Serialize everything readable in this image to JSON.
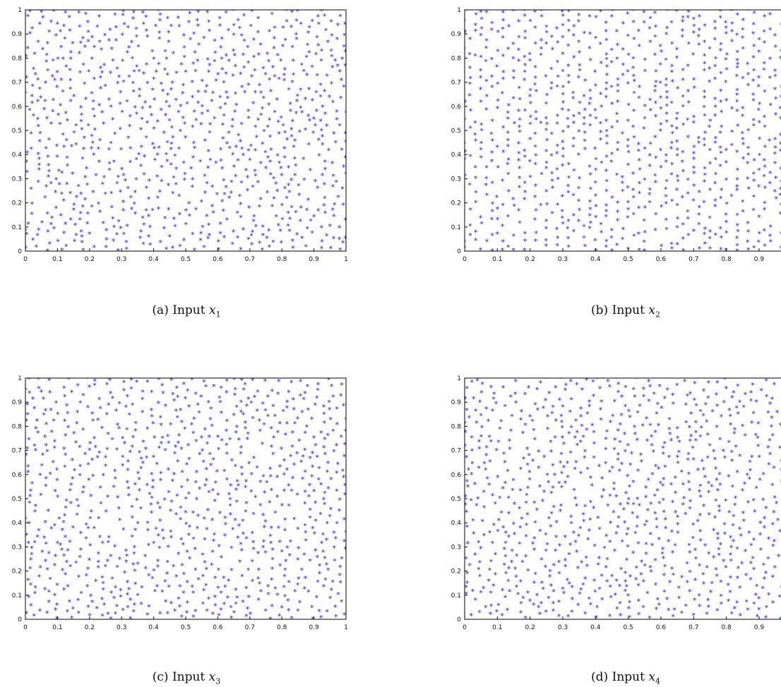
{
  "chart_data": [
    {
      "type": "scatter",
      "panel_label": "(a)",
      "caption_text": "Input",
      "variable": "x",
      "subscript": "1",
      "xlim": [
        0,
        1
      ],
      "ylim": [
        0,
        1
      ],
      "xticks": [
        "0",
        "0.1",
        "0.2",
        "0.3",
        "0.4",
        "0.5",
        "0.6",
        "0.7",
        "0.8",
        "0.9",
        "1"
      ],
      "yticks": [
        "0",
        "0.1",
        "0.2",
        "0.3",
        "0.4",
        "0.5",
        "0.6",
        "0.7",
        "0.8",
        "0.9",
        "1"
      ],
      "marker": "*",
      "marker_color": "#1414e6",
      "grid": false,
      "points_generator": "seed 11, 900 points, space-filling uniform on [0,1]x[0,1]"
    },
    {
      "type": "scatter",
      "panel_label": "(b)",
      "caption_text": "Input",
      "variable": "x",
      "subscript": "2",
      "xlim": [
        0,
        0.98
      ],
      "ylim": [
        0,
        1
      ],
      "xticks": [
        "0",
        "0.1",
        "0.2",
        "0.3",
        "0.4",
        "0.5",
        "0.6",
        "0.7",
        "0.8",
        "0.9"
      ],
      "yticks": [
        "0",
        "0.1",
        "0.2",
        "0.3",
        "0.4",
        "0.5",
        "0.6",
        "0.7",
        "0.8",
        "0.9",
        "1"
      ],
      "marker": "*",
      "marker_color": "#1414e6",
      "grid": false,
      "points_generator": "seed 23, 900 points, column-aligned uniform on [0,1]x[0,1]"
    },
    {
      "type": "scatter",
      "panel_label": "(c)",
      "caption_text": "Input",
      "variable": "x",
      "subscript": "3",
      "xlim": [
        0,
        1
      ],
      "ylim": [
        0,
        1
      ],
      "xticks": [
        "0",
        "0.1",
        "0.2",
        "0.3",
        "0.4",
        "0.5",
        "0.6",
        "0.7",
        "0.8",
        "0.9",
        "1"
      ],
      "yticks": [
        "0",
        "0.1",
        "0.2",
        "0.3",
        "0.4",
        "0.5",
        "0.6",
        "0.7",
        "0.8",
        "0.9",
        "1"
      ],
      "marker": "*",
      "marker_color": "#1414e6",
      "grid": false,
      "points_generator": "seed 37, 900 points, space-filling uniform on [0,1]x[0,1]"
    },
    {
      "type": "scatter",
      "panel_label": "(d)",
      "caption_text": "Input",
      "variable": "x",
      "subscript": "4",
      "xlim": [
        0,
        0.98
      ],
      "ylim": [
        0,
        1
      ],
      "xticks": [
        "0",
        "0.1",
        "0.2",
        "0.3",
        "0.4",
        "0.5",
        "0.6",
        "0.7",
        "0.8",
        "0.9"
      ],
      "yticks": [
        "0",
        "0.1",
        "0.2",
        "0.3",
        "0.4",
        "0.5",
        "0.6",
        "0.7",
        "0.8",
        "0.9",
        "1"
      ],
      "marker": "*",
      "marker_color": "#1414e6",
      "grid": false,
      "points_generator": "seed 53, 900 points, space-filling uniform on [0,1]x[0,1]"
    }
  ]
}
